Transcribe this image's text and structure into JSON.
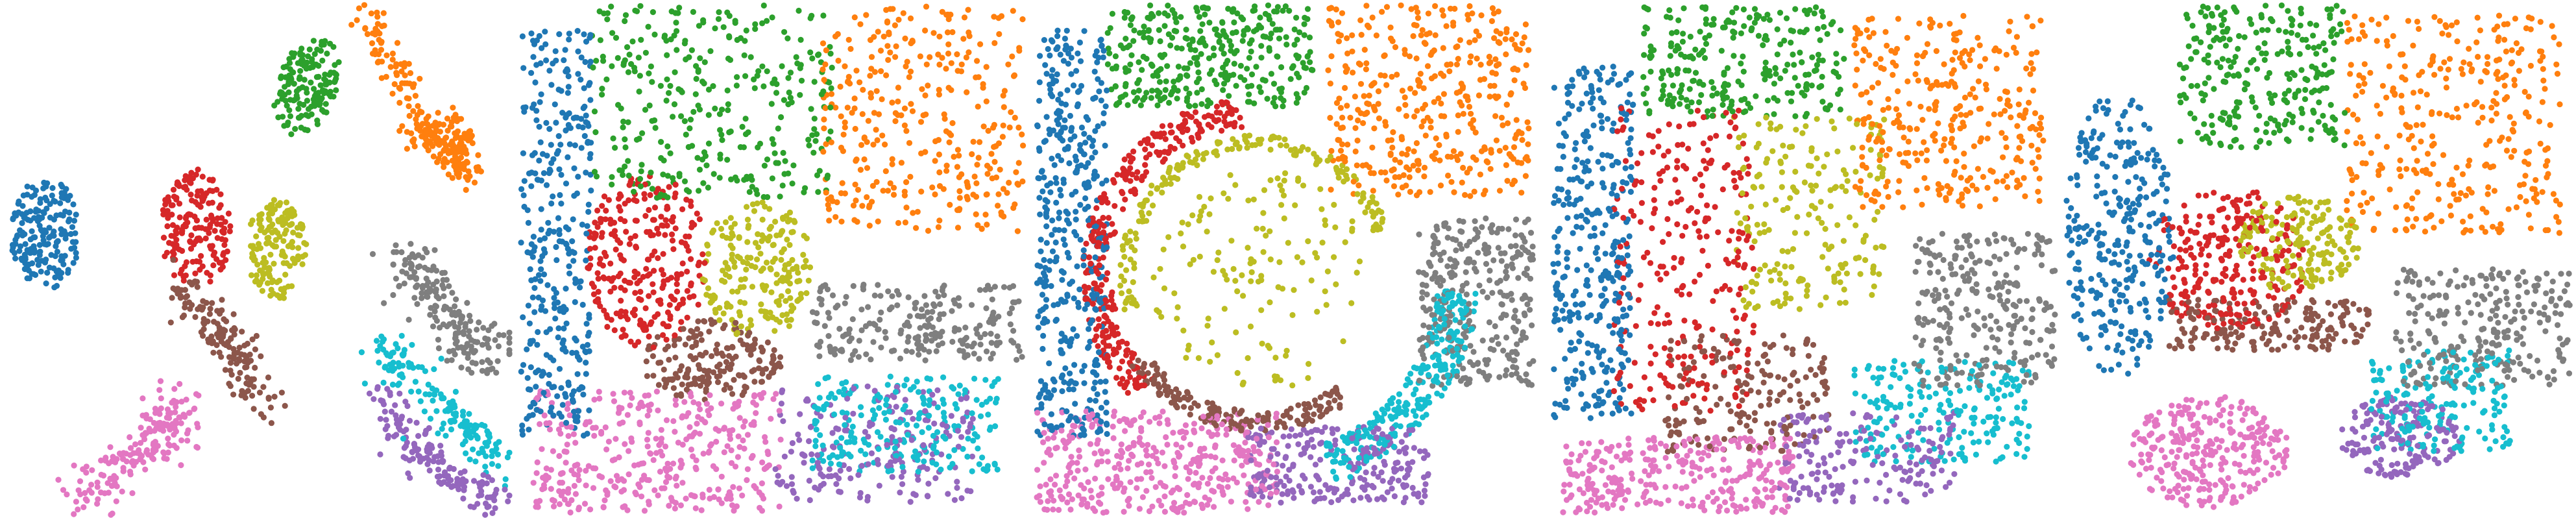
{
  "chart_data": {
    "type": "scatter",
    "axes_visible": false,
    "legend": "none",
    "grid": false,
    "panel_count": 5,
    "clusters": [
      {
        "id": 0,
        "color": "#1f77b4"
      },
      {
        "id": 1,
        "color": "#ff7f0e"
      },
      {
        "id": 2,
        "color": "#2ca02c"
      },
      {
        "id": 3,
        "color": "#d62728"
      },
      {
        "id": 4,
        "color": "#9467bd"
      },
      {
        "id": 5,
        "color": "#8c564b"
      },
      {
        "id": 6,
        "color": "#e377c2"
      },
      {
        "id": 7,
        "color": "#7f7f7f"
      },
      {
        "id": 8,
        "color": "#bcbd22"
      },
      {
        "id": 9,
        "color": "#17becf"
      }
    ],
    "panels": [
      {
        "name": "embedding",
        "xlim": [
          0,
          1
        ],
        "ylim": [
          0,
          1
        ],
        "regions": [
          {
            "cluster": 0,
            "shape": "ellipse",
            "cx": 0.08,
            "cy": 0.55,
            "rx": 0.07,
            "ry": 0.11,
            "n": 180
          },
          {
            "cluster": 2,
            "shape": "ellipse",
            "cx": 0.6,
            "cy": 0.84,
            "rx": 0.06,
            "ry": 0.1,
            "n": 150,
            "rot": -20
          },
          {
            "cluster": 1,
            "shape": "stroke",
            "path": [
              [
                0.71,
                0.99
              ],
              [
                0.78,
                0.88
              ],
              [
                0.83,
                0.75
              ],
              [
                0.9,
                0.72
              ],
              [
                0.93,
                0.66
              ]
            ],
            "w": 0.03,
            "n": 180
          },
          {
            "cluster": 1,
            "shape": "ellipse",
            "cx": 0.88,
            "cy": 0.74,
            "rx": 0.05,
            "ry": 0.06,
            "n": 60
          },
          {
            "cluster": 3,
            "shape": "ellipse",
            "cx": 0.38,
            "cy": 0.56,
            "rx": 0.07,
            "ry": 0.12,
            "n": 170
          },
          {
            "cluster": 8,
            "shape": "ellipse",
            "cx": 0.54,
            "cy": 0.52,
            "rx": 0.06,
            "ry": 0.1,
            "n": 150
          },
          {
            "cluster": 5,
            "shape": "stroke",
            "path": [
              [
                0.33,
                0.45
              ],
              [
                0.42,
                0.38
              ],
              [
                0.47,
                0.3
              ],
              [
                0.53,
                0.2
              ]
            ],
            "w": 0.035,
            "n": 150
          },
          {
            "cluster": 6,
            "shape": "stroke",
            "path": [
              [
                0.15,
                0.03
              ],
              [
                0.24,
                0.1
              ],
              [
                0.32,
                0.15
              ],
              [
                0.33,
                0.2
              ]
            ],
            "w": 0.05,
            "n": 190
          },
          {
            "cluster": 7,
            "shape": "stroke",
            "path": [
              [
                0.78,
                0.5
              ],
              [
                0.86,
                0.42
              ],
              [
                0.92,
                0.35
              ],
              [
                0.97,
                0.3
              ]
            ],
            "w": 0.045,
            "n": 190
          },
          {
            "cluster": 9,
            "shape": "stroke",
            "path": [
              [
                0.74,
                0.33
              ],
              [
                0.84,
                0.24
              ],
              [
                0.92,
                0.16
              ],
              [
                0.98,
                0.1
              ]
            ],
            "w": 0.035,
            "n": 160
          },
          {
            "cluster": 4,
            "shape": "stroke",
            "path": [
              [
                0.74,
                0.24
              ],
              [
                0.8,
                0.15
              ],
              [
                0.88,
                0.07
              ],
              [
                0.98,
                0.02
              ]
            ],
            "w": 0.035,
            "n": 150
          }
        ]
      },
      {
        "name": "spatial-1",
        "xlim": [
          0,
          1
        ],
        "ylim": [
          0,
          1
        ],
        "regions": [
          {
            "cluster": 0,
            "shape": "rect",
            "x0": 0.0,
            "x1": 0.14,
            "y0": 0.15,
            "y1": 0.95,
            "n": 330
          },
          {
            "cluster": 2,
            "shape": "rect",
            "x0": 0.14,
            "x1": 0.62,
            "y0": 0.62,
            "y1": 1.0,
            "n": 320
          },
          {
            "cluster": 1,
            "shape": "rect",
            "x0": 0.6,
            "x1": 1.0,
            "y0": 0.55,
            "y1": 1.0,
            "n": 330
          },
          {
            "cluster": 3,
            "shape": "ellipse",
            "cx": 0.25,
            "cy": 0.5,
            "rx": 0.12,
            "ry": 0.18,
            "n": 260
          },
          {
            "cluster": 8,
            "shape": "ellipse",
            "cx": 0.47,
            "cy": 0.48,
            "rx": 0.11,
            "ry": 0.14,
            "n": 200
          },
          {
            "cluster": 5,
            "shape": "ellipse",
            "cx": 0.38,
            "cy": 0.3,
            "rx": 0.14,
            "ry": 0.08,
            "n": 180
          },
          {
            "cluster": 7,
            "shape": "rect",
            "x0": 0.58,
            "x1": 1.0,
            "y0": 0.3,
            "y1": 0.45,
            "n": 220
          },
          {
            "cluster": 9,
            "shape": "rect",
            "x0": 0.58,
            "x1": 0.95,
            "y0": 0.08,
            "y1": 0.27,
            "n": 220
          },
          {
            "cluster": 4,
            "shape": "rect",
            "x0": 0.5,
            "x1": 0.9,
            "y0": 0.02,
            "y1": 0.25,
            "n": 200
          },
          {
            "cluster": 6,
            "shape": "rect",
            "x0": 0.02,
            "x1": 0.52,
            "y0": 0.0,
            "y1": 0.24,
            "n": 360
          }
        ]
      },
      {
        "name": "spatial-2",
        "xlim": [
          0,
          1
        ],
        "ylim": [
          0,
          1
        ],
        "regions": [
          {
            "cluster": 0,
            "shape": "rect",
            "x0": 0.0,
            "x1": 0.14,
            "y0": 0.15,
            "y1": 0.95,
            "n": 420
          },
          {
            "cluster": 2,
            "shape": "rect",
            "x0": 0.14,
            "x1": 0.55,
            "y0": 0.8,
            "y1": 1.0,
            "n": 330
          },
          {
            "cluster": 1,
            "shape": "rect",
            "x0": 0.58,
            "x1": 0.98,
            "y0": 0.62,
            "y1": 1.0,
            "n": 380
          },
          {
            "cluster": 3,
            "shape": "arc",
            "cx": 0.44,
            "cy": 0.47,
            "r": 0.32,
            "w": 0.06,
            "a0": 95,
            "a1": 225,
            "n": 300
          },
          {
            "cluster": 8,
            "shape": "arc",
            "cx": 0.44,
            "cy": 0.47,
            "r": 0.26,
            "w": 0.03,
            "a0": 15,
            "a1": 195,
            "n": 170
          },
          {
            "cluster": 8,
            "shape": "ellipse",
            "cx": 0.45,
            "cy": 0.46,
            "rx": 0.22,
            "ry": 0.22,
            "n": 140
          },
          {
            "cluster": 5,
            "shape": "arc",
            "cx": 0.44,
            "cy": 0.47,
            "r": 0.29,
            "w": 0.04,
            "a0": 215,
            "a1": 305,
            "n": 170
          },
          {
            "cluster": 7,
            "shape": "rect",
            "x0": 0.76,
            "x1": 0.99,
            "y0": 0.25,
            "y1": 0.58,
            "n": 300
          },
          {
            "cluster": 9,
            "shape": "arc",
            "cx": 0.44,
            "cy": 0.47,
            "r": 0.4,
            "w": 0.08,
            "a0": 290,
            "a1": 355,
            "n": 260
          },
          {
            "cluster": 4,
            "shape": "rect",
            "x0": 0.42,
            "x1": 0.78,
            "y0": 0.02,
            "y1": 0.17,
            "n": 240
          },
          {
            "cluster": 6,
            "shape": "rect",
            "x0": 0.0,
            "x1": 0.48,
            "y0": 0.0,
            "y1": 0.2,
            "n": 380
          }
        ]
      },
      {
        "name": "spatial-3",
        "xlim": [
          0,
          1
        ],
        "ylim": [
          0,
          1
        ],
        "regions": [
          {
            "cluster": 0,
            "shape": "rect",
            "x0": 0.0,
            "x1": 0.16,
            "y0": 0.18,
            "y1": 0.88,
            "n": 360
          },
          {
            "cluster": 2,
            "shape": "rect",
            "x0": 0.18,
            "x1": 0.58,
            "y0": 0.78,
            "y1": 1.0,
            "n": 260
          },
          {
            "cluster": 1,
            "shape": "rect",
            "x0": 0.6,
            "x1": 0.98,
            "y0": 0.6,
            "y1": 0.98,
            "n": 320
          },
          {
            "cluster": 3,
            "shape": "rect",
            "x0": 0.12,
            "x1": 0.4,
            "y0": 0.2,
            "y1": 0.8,
            "n": 260
          },
          {
            "cluster": 8,
            "shape": "rect",
            "x0": 0.36,
            "x1": 0.66,
            "y0": 0.4,
            "y1": 0.78,
            "n": 200
          },
          {
            "cluster": 5,
            "shape": "rect",
            "x0": 0.22,
            "x1": 0.55,
            "y0": 0.12,
            "y1": 0.35,
            "n": 180
          },
          {
            "cluster": 7,
            "shape": "rect",
            "x0": 0.72,
            "x1": 1.0,
            "y0": 0.25,
            "y1": 0.55,
            "n": 260
          },
          {
            "cluster": 9,
            "shape": "rect",
            "x0": 0.6,
            "x1": 0.95,
            "y0": 0.1,
            "y1": 0.3,
            "n": 200
          },
          {
            "cluster": 4,
            "shape": "rect",
            "x0": 0.45,
            "x1": 0.8,
            "y0": 0.02,
            "y1": 0.2,
            "n": 180
          },
          {
            "cluster": 6,
            "shape": "rect",
            "x0": 0.02,
            "x1": 0.48,
            "y0": 0.0,
            "y1": 0.15,
            "n": 300
          }
        ]
      },
      {
        "name": "spatial-4",
        "xlim": [
          0,
          1
        ],
        "ylim": [
          0,
          1
        ],
        "regions": [
          {
            "cluster": 0,
            "shape": "ellipse",
            "cx": 0.1,
            "cy": 0.55,
            "rx": 0.11,
            "ry": 0.28,
            "n": 300
          },
          {
            "cluster": 2,
            "shape": "rect",
            "x0": 0.22,
            "x1": 0.55,
            "y0": 0.72,
            "y1": 1.0,
            "n": 260
          },
          {
            "cluster": 1,
            "shape": "rect",
            "x0": 0.55,
            "x1": 0.98,
            "y0": 0.55,
            "y1": 0.98,
            "n": 330
          },
          {
            "cluster": 3,
            "shape": "ellipse",
            "cx": 0.32,
            "cy": 0.5,
            "rx": 0.16,
            "ry": 0.14,
            "n": 260
          },
          {
            "cluster": 8,
            "shape": "ellipse",
            "cx": 0.46,
            "cy": 0.53,
            "rx": 0.12,
            "ry": 0.1,
            "n": 190
          },
          {
            "cluster": 5,
            "shape": "rect",
            "x0": 0.2,
            "x1": 0.6,
            "y0": 0.32,
            "y1": 0.42,
            "n": 180
          },
          {
            "cluster": 7,
            "shape": "rect",
            "x0": 0.65,
            "x1": 1.0,
            "y0": 0.25,
            "y1": 0.48,
            "n": 250
          },
          {
            "cluster": 9,
            "shape": "rect",
            "x0": 0.6,
            "x1": 0.88,
            "y0": 0.12,
            "y1": 0.32,
            "n": 180
          },
          {
            "cluster": 4,
            "shape": "ellipse",
            "cx": 0.66,
            "cy": 0.15,
            "rx": 0.12,
            "ry": 0.08,
            "n": 170
          },
          {
            "cluster": 6,
            "shape": "ellipse",
            "cx": 0.28,
            "cy": 0.12,
            "rx": 0.16,
            "ry": 0.11,
            "n": 280
          }
        ]
      }
    ]
  }
}
